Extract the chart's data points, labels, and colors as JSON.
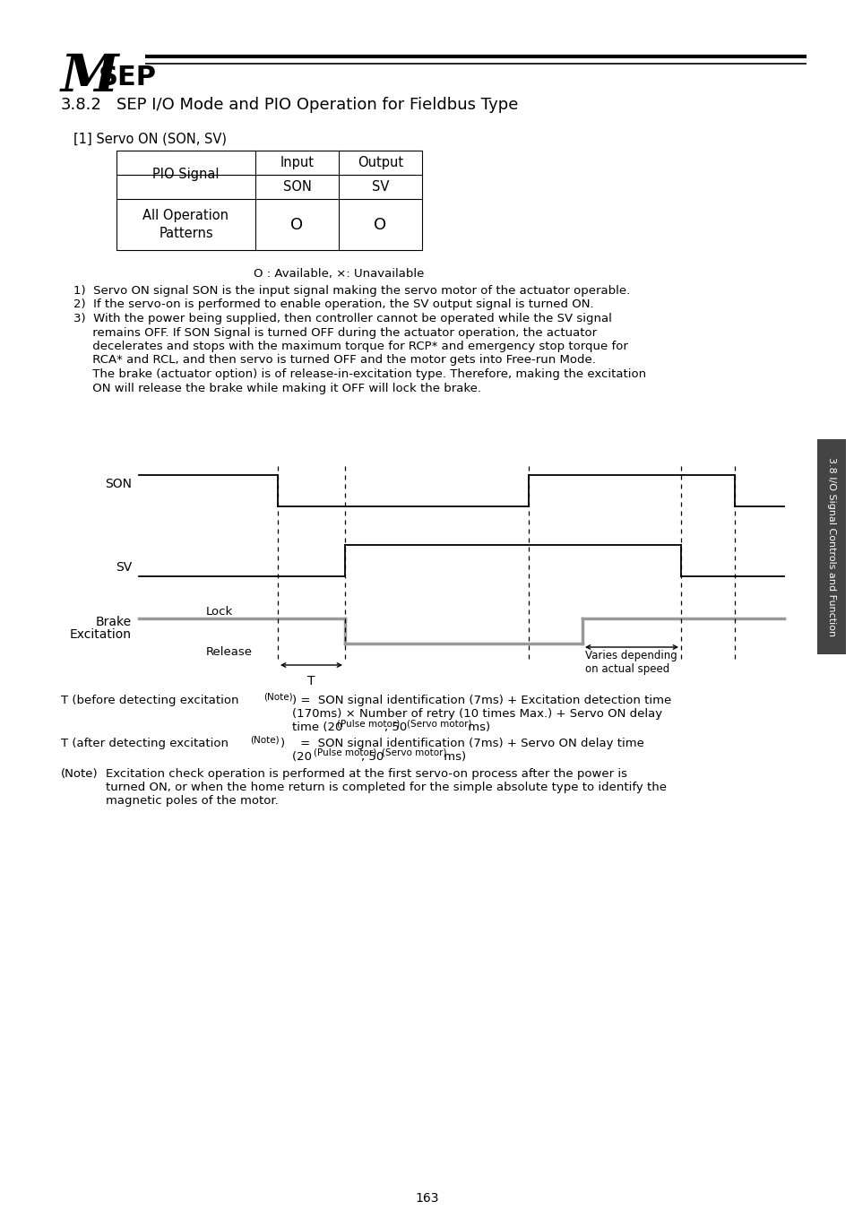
{
  "bg_color": "#ffffff",
  "title_M": "M",
  "title_SEP": "SEP",
  "section": "3.8.2",
  "section_title": "SEP I/O Mode and PIO Operation for Fieldbus Type",
  "subsection": "[1] Servo ON (SON, SV)",
  "table_header_col0": "PIO Signal",
  "table_header_input": "Input",
  "table_header_output": "Output",
  "table_subheader_input": "SON",
  "table_subheader_output": "SV",
  "table_row_label": "All Operation\nPatterns",
  "table_cell_input": "O",
  "table_cell_output": "O",
  "table_legend": "O : Available, ×: Unavailable",
  "note1": "1)  Servo ON signal SON is the input signal making the servo motor of the actuator operable.",
  "note2": "2)  If the servo-on is performed to enable operation, the SV output signal is turned ON.",
  "note3_line1": "3)  With the power being supplied, then controller cannot be operated while the SV signal",
  "note3_line2": "     remains OFF. If SON Signal is turned OFF during the actuator operation, the actuator",
  "note3_line3": "     decelerates and stops with the maximum torque for RCP* and emergency stop torque for",
  "note3_line4": "     RCA* and RCL, and then servo is turned OFF and the motor gets into Free-run Mode.",
  "note3_line5": "     The brake (actuator option) is of release-in-excitation type. Therefore, making the excitation",
  "note3_line6": "     ON will release the brake while making it OFF will lock the brake.",
  "signal_SON": "SON",
  "signal_SV": "SV",
  "signal_brake1": "Brake",
  "signal_brake2": "Excitation",
  "signal_lock": "Lock",
  "signal_release": "Release",
  "signal_T": "T",
  "signal_varies": "Varies depending\non actual speed",
  "sidebar_text": "3.8 I/O Signal Controls and Function",
  "page_number": "163",
  "font_color": "#000000",
  "gray_color": "#999999",
  "sidebar_color": "#444444"
}
